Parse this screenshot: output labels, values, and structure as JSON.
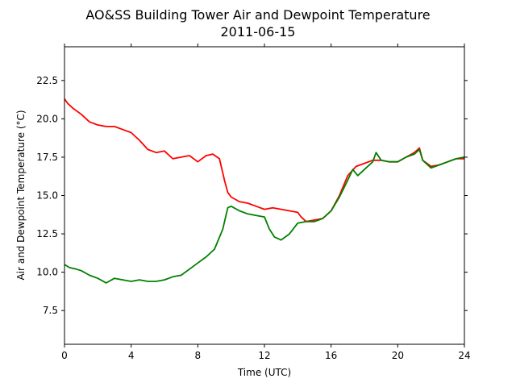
{
  "chart_data": {
    "type": "line",
    "title": "AO&SS Building Tower Air and Dewpoint Temperature",
    "subtitle": "2011-06-15",
    "xlabel": "Time (UTC)",
    "ylabel": "Air and Dewpoint Temperature (°C)",
    "xlim": [
      0,
      24
    ],
    "ylim": [
      5.3,
      24.7
    ],
    "xticks": [
      0,
      4,
      8,
      12,
      16,
      20,
      24
    ],
    "yticks": [
      7.5,
      10.0,
      12.5,
      15.0,
      17.5,
      20.0,
      22.5
    ],
    "grid": false,
    "series": [
      {
        "color": "#ff0000",
        "x": [
          0,
          0.2,
          0.5,
          1,
          1.5,
          2,
          2.5,
          3,
          3.5,
          4,
          4.5,
          5,
          5.5,
          6,
          6.5,
          7,
          7.5,
          8,
          8.5,
          8.9,
          9.3,
          9.6,
          9.8,
          10,
          10.5,
          11,
          11.5,
          12,
          12.5,
          13,
          13.5,
          14,
          14.2,
          14.5,
          15,
          15.5,
          16,
          16.5,
          17,
          17.5,
          18,
          18.5,
          19,
          19.5,
          20,
          20.5,
          21,
          21.3,
          21.5,
          22,
          22.5,
          23,
          23.5,
          24
        ],
        "values": [
          21.3,
          21.0,
          20.7,
          20.3,
          19.8,
          19.6,
          19.5,
          19.5,
          19.3,
          19.1,
          18.6,
          18.0,
          17.8,
          17.9,
          17.4,
          17.5,
          17.6,
          17.2,
          17.6,
          17.7,
          17.4,
          16.0,
          15.2,
          14.9,
          14.6,
          14.5,
          14.3,
          14.1,
          14.2,
          14.1,
          14.0,
          13.9,
          13.6,
          13.3,
          13.4,
          13.5,
          14.0,
          15.0,
          16.3,
          16.9,
          17.1,
          17.3,
          17.3,
          17.2,
          17.2,
          17.5,
          17.8,
          18.1,
          17.3,
          16.9,
          17.0,
          17.2,
          17.4,
          17.4
        ]
      },
      {
        "color": "#008000",
        "x": [
          0,
          0.3,
          0.7,
          1,
          1.5,
          2,
          2.5,
          3,
          3.5,
          4,
          4.5,
          5,
          5.5,
          6,
          6.5,
          7,
          7.5,
          8,
          8.5,
          9,
          9.5,
          9.8,
          10,
          10.5,
          11,
          11.5,
          12,
          12.3,
          12.6,
          13,
          13.5,
          14,
          14.5,
          15,
          15.5,
          16,
          16.5,
          17,
          17.3,
          17.6,
          18,
          18.5,
          18.7,
          19,
          19.5,
          20,
          20.5,
          21,
          21.3,
          21.5,
          22,
          22.5,
          23,
          23.5,
          24
        ],
        "values": [
          10.5,
          10.3,
          10.2,
          10.1,
          9.8,
          9.6,
          9.3,
          9.6,
          9.5,
          9.4,
          9.5,
          9.4,
          9.4,
          9.5,
          9.7,
          9.8,
          10.2,
          10.6,
          11.0,
          11.5,
          12.8,
          14.2,
          14.3,
          14.0,
          13.8,
          13.7,
          13.6,
          12.8,
          12.3,
          12.1,
          12.5,
          13.2,
          13.3,
          13.3,
          13.5,
          14.0,
          14.9,
          16.0,
          16.7,
          16.3,
          16.7,
          17.2,
          17.8,
          17.3,
          17.2,
          17.2,
          17.5,
          17.7,
          18.0,
          17.3,
          16.8,
          17.0,
          17.2,
          17.4,
          17.5
        ]
      }
    ]
  }
}
